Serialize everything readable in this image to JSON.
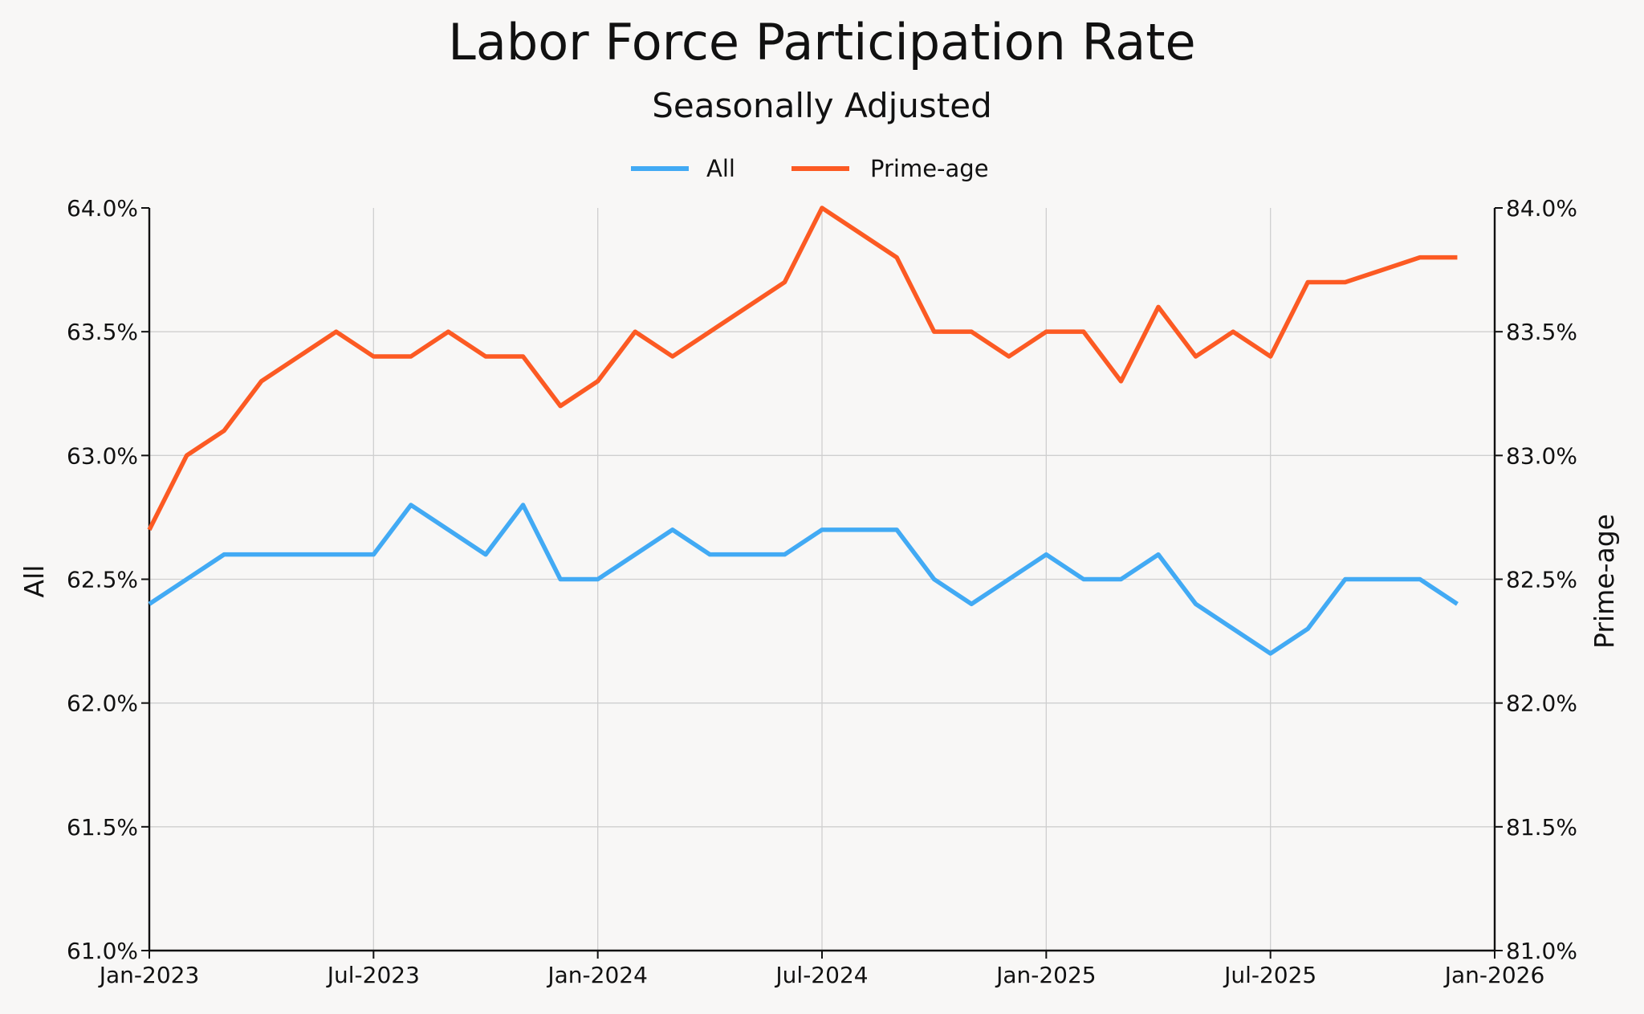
{
  "chart_data": {
    "type": "line",
    "title": "Labor Force Participation Rate",
    "subtitle": "Seasonally Adjusted",
    "x_ticks": [
      "Jan-2023",
      "Jul-2023",
      "Jan-2024",
      "Jul-2024",
      "Jan-2025",
      "Jul-2025",
      "Jan-2026"
    ],
    "xlim": [
      "2023-01",
      "2026-01"
    ],
    "x": [
      "2023-01",
      "2023-02",
      "2023-03",
      "2023-04",
      "2023-05",
      "2023-06",
      "2023-07",
      "2023-08",
      "2023-09",
      "2023-10",
      "2023-11",
      "2023-12",
      "2024-01",
      "2024-02",
      "2024-03",
      "2024-04",
      "2024-05",
      "2024-06",
      "2024-07",
      "2024-08",
      "2024-09",
      "2024-10",
      "2024-11",
      "2024-12",
      "2025-01",
      "2025-02",
      "2025-03",
      "2025-04",
      "2025-05",
      "2025-06",
      "2025-07",
      "2025-08",
      "2025-09",
      "2025-10",
      "2025-11",
      "2025-12"
    ],
    "y_left": {
      "label": "All",
      "ylim": [
        61.0,
        64.0
      ],
      "ticks": [
        "61.0%",
        "61.5%",
        "62.0%",
        "62.5%",
        "63.0%",
        "63.5%",
        "64.0%"
      ]
    },
    "y_right": {
      "label": "Prime-age",
      "ylim": [
        81.0,
        84.0
      ],
      "ticks": [
        "81.0%",
        "81.5%",
        "82.0%",
        "82.5%",
        "83.0%",
        "83.5%",
        "84.0%"
      ]
    },
    "grid": true,
    "legend_position": "top-center",
    "series": [
      {
        "name": "All",
        "axis": "left",
        "color": "#42aaf4",
        "values": [
          62.4,
          62.5,
          62.6,
          62.6,
          62.6,
          62.6,
          62.6,
          62.8,
          62.7,
          62.6,
          62.8,
          62.5,
          62.5,
          62.6,
          62.7,
          62.6,
          62.6,
          62.6,
          62.7,
          62.7,
          62.7,
          62.5,
          62.4,
          62.5,
          62.6,
          62.5,
          62.5,
          62.6,
          62.4,
          62.3,
          62.2,
          62.3,
          62.5,
          62.5,
          62.5,
          62.4
        ]
      },
      {
        "name": "Prime-age",
        "axis": "right",
        "color": "#fc5a23",
        "values": [
          82.7,
          83.0,
          83.1,
          83.3,
          83.4,
          83.5,
          83.4,
          83.4,
          83.5,
          83.4,
          83.4,
          83.2,
          83.3,
          83.5,
          83.4,
          83.5,
          83.6,
          83.7,
          84.0,
          83.9,
          83.8,
          83.5,
          83.5,
          83.4,
          83.5,
          83.5,
          83.3,
          83.6,
          83.4,
          83.5,
          83.4,
          83.7,
          83.7,
          83.75,
          83.8,
          83.8
        ]
      }
    ]
  }
}
